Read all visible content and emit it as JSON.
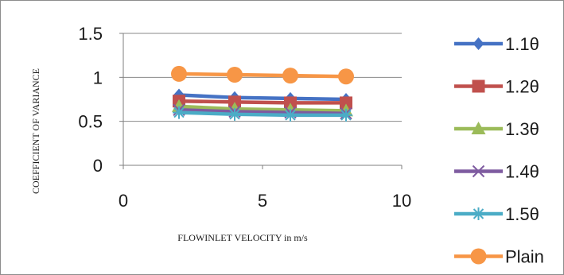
{
  "chart_data": {
    "type": "line",
    "title": "",
    "xlabel": "FLOWINLET VELOCITY in m/s",
    "ylabel": "COEFFICIENT OF VARIANCE",
    "xlim": [
      0,
      10
    ],
    "ylim": [
      0,
      1.5
    ],
    "xticks": [
      "0",
      "5",
      "10"
    ],
    "yticks": [
      "0",
      "0.5",
      "1",
      "1.5"
    ],
    "x": [
      2,
      4,
      6,
      8
    ],
    "grid": "horizontal",
    "legend_position": "right",
    "series": [
      {
        "name": "1.1θ",
        "values": [
          0.8,
          0.77,
          0.76,
          0.75
        ],
        "color": "#4572c4",
        "marker": "diamond"
      },
      {
        "name": "1.2θ",
        "values": [
          0.73,
          0.72,
          0.71,
          0.71
        ],
        "color": "#c0504d",
        "marker": "square"
      },
      {
        "name": "1.3θ",
        "values": [
          0.67,
          0.64,
          0.63,
          0.62
        ],
        "color": "#9bbb59",
        "marker": "triangle"
      },
      {
        "name": "1.4θ",
        "values": [
          0.63,
          0.61,
          0.6,
          0.59
        ],
        "color": "#7e5ba0",
        "marker": "x"
      },
      {
        "name": "1.5θ",
        "values": [
          0.6,
          0.58,
          0.57,
          0.57
        ],
        "color": "#4bacc6",
        "marker": "star"
      },
      {
        "name": "Plain",
        "values": [
          1.04,
          1.03,
          1.02,
          1.01
        ],
        "color": "#f79646",
        "marker": "circle"
      }
    ]
  }
}
